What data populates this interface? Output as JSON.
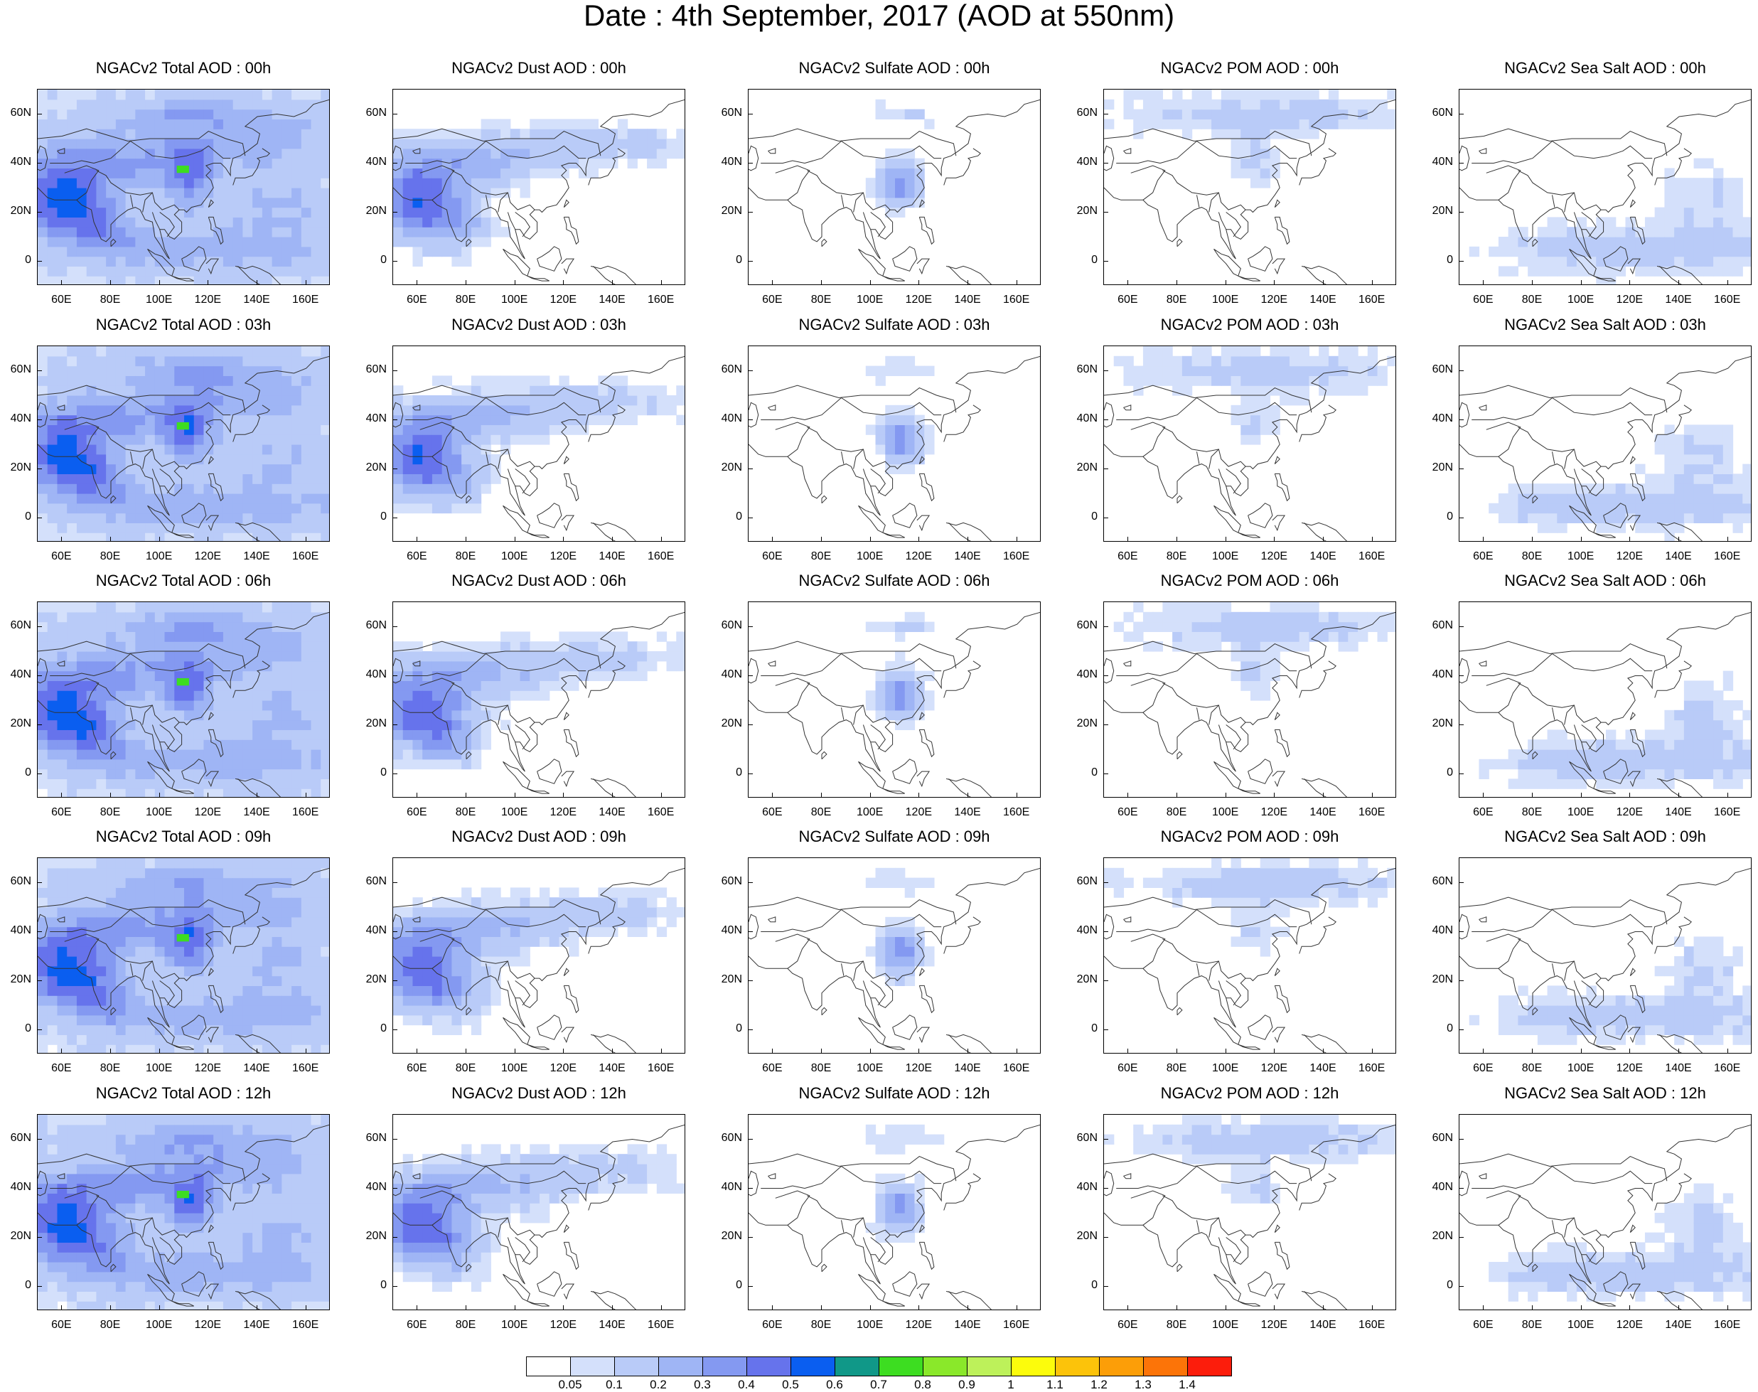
{
  "title": "Date : 4th September, 2017 (AOD at 550nm)",
  "axis_labels": {
    "lat": [
      "60N",
      "40N",
      "20N",
      "0"
    ],
    "lon": [
      "60E",
      "80E",
      "100E",
      "120E",
      "140E",
      "160E"
    ]
  },
  "panels": [
    [
      "NGACv2 Total AOD : 00h",
      "NGACv2 Dust AOD : 00h",
      "NGACv2 Sulfate AOD : 00h",
      "NGACv2 POM AOD : 00h",
      "NGACv2 Sea Salt AOD : 00h"
    ],
    [
      "NGACv2 Total AOD : 03h",
      "NGACv2 Dust AOD : 03h",
      "NGACv2 Sulfate AOD : 03h",
      "NGACv2 POM AOD : 03h",
      "NGACv2 Sea Salt AOD : 03h"
    ],
    [
      "NGACv2 Total AOD : 06h",
      "NGACv2 Dust AOD : 06h",
      "NGACv2 Sulfate AOD : 06h",
      "NGACv2 POM AOD : 06h",
      "NGACv2 Sea Salt AOD : 06h"
    ],
    [
      "NGACv2 Total AOD : 09h",
      "NGACv2 Dust AOD : 09h",
      "NGACv2 Sulfate AOD : 09h",
      "NGACv2 POM AOD : 09h",
      "NGACv2 Sea Salt  AOD : 09h"
    ],
    [
      "NGACv2 Total AOD  : 12h",
      "NGACv2 Dust AOD : 12h",
      "NGACv2 Sulfate AOD : 12h",
      "NGACv2 POM  AOD : 12h",
      "NGACv2 Sea Salt  AOD : 12h"
    ]
  ],
  "colorbar": {
    "colors": [
      "#ffffff",
      "#d4e0fb",
      "#b9cbf8",
      "#9fb5f5",
      "#8499f1",
      "#6673ec",
      "#0a5ef0",
      "#109888",
      "#3ddd21",
      "#8ae82a",
      "#bdf15a",
      "#fcfc0c",
      "#fcc30a",
      "#fc9e08",
      "#fc7408",
      "#fc1d0c"
    ],
    "labels": [
      "0.05",
      "0.1",
      "0.2",
      "0.3",
      "0.4",
      "0.5",
      "0.6",
      "0.7",
      "0.8",
      "0.9",
      "1",
      "1.1",
      "1.2",
      "1.3",
      "1.4"
    ]
  }
}
